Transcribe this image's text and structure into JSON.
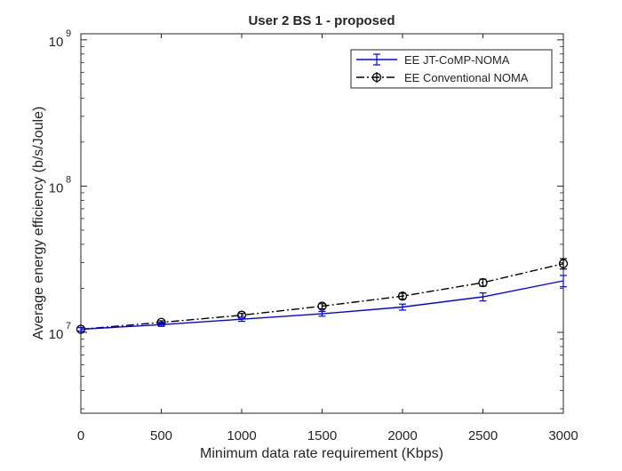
{
  "chart_data": {
    "type": "line",
    "title": "User 2 BS 1 - proposed",
    "xlabel": "Minimum data rate requirement (Kbps)",
    "ylabel": "Average energy efficiency (b/s/Joule)",
    "x": [
      0,
      500,
      1000,
      1500,
      2000,
      2500,
      3000
    ],
    "xlim": [
      0,
      3000
    ],
    "ylim": [
      2800000,
      1100000000
    ],
    "yscale": "log",
    "x_ticks": [
      0,
      500,
      1000,
      1500,
      2000,
      2500,
      3000
    ],
    "x_tick_labels": [
      "0",
      "500",
      "1000",
      "1500",
      "2000",
      "2500",
      "3000"
    ],
    "y_ticks": [
      10000000,
      100000000,
      1000000000
    ],
    "y_tick_labels": [
      {
        "base": "10",
        "exp": "7"
      },
      {
        "base": "10",
        "exp": "8"
      },
      {
        "base": "10",
        "exp": "9"
      }
    ],
    "legend_position": "top-right",
    "grid": false,
    "series": [
      {
        "name": "EE JT-CoMP-NOMA",
        "color": "#0000ff",
        "line_style": "solid",
        "marker": "errorbar",
        "values": [
          10500000,
          11300000,
          12300000,
          13400000,
          14900000,
          17500000,
          22500000
        ],
        "error": [
          300000,
          300000,
          400000,
          500000,
          700000,
          1100000,
          2000000
        ]
      },
      {
        "name": "EE Conventional NOMA",
        "color": "#000000",
        "line_style": "dash-dot",
        "marker": "circle",
        "values": [
          10500000,
          11700000,
          13100000,
          15100000,
          17700000,
          21900000,
          29500000
        ],
        "error": [
          300000,
          300000,
          400000,
          600000,
          800000,
          1200000,
          2400000
        ]
      }
    ]
  }
}
